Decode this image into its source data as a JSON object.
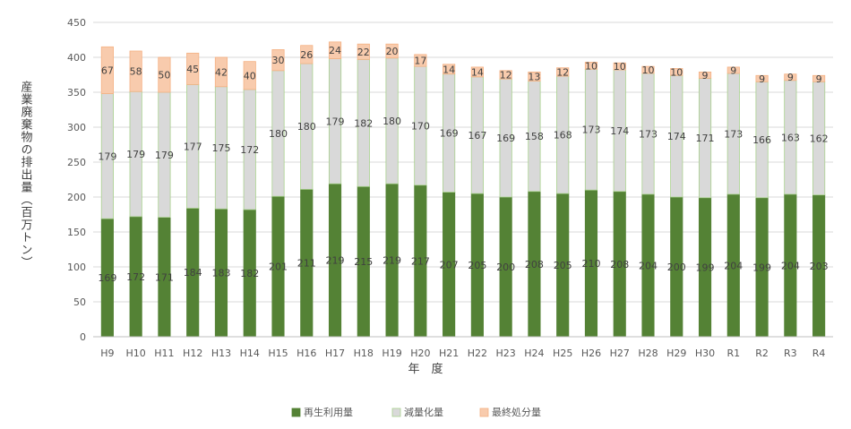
{
  "chart_data": {
    "type": "bar",
    "stacked": true,
    "title": "",
    "xlabel": "年　度",
    "ylabel": "産業廃棄物の排出量（百万トン）",
    "ylim": [
      0,
      450
    ],
    "yticks": [
      0,
      50,
      100,
      150,
      200,
      250,
      300,
      350,
      400,
      450
    ],
    "grid": true,
    "legend_position": "bottom",
    "categories": [
      "H9",
      "H10",
      "H11",
      "H12",
      "H13",
      "H14",
      "H15",
      "H16",
      "H17",
      "H18",
      "H19",
      "H20",
      "H21",
      "H22",
      "H23",
      "H24",
      "H25",
      "H26",
      "H27",
      "H28",
      "H29",
      "H30",
      "R1",
      "R2",
      "R3",
      "R4"
    ],
    "series": [
      {
        "name": "再生利用量",
        "color": "#548235",
        "values": [
          169,
          172,
          171,
          184,
          183,
          182,
          201,
          211,
          219,
          215,
          219,
          217,
          207,
          205,
          200,
          208,
          205,
          210,
          208,
          204,
          200,
          199,
          204,
          199,
          204,
          203
        ]
      },
      {
        "name": "減量化量",
        "color": "#d9d9d9",
        "values": [
          179,
          179,
          179,
          177,
          175,
          172,
          180,
          180,
          179,
          182,
          180,
          170,
          169,
          167,
          169,
          158,
          168,
          173,
          174,
          173,
          174,
          171,
          173,
          166,
          163,
          162
        ]
      },
      {
        "name": "最終処分量",
        "color": "#f8cbad",
        "values": [
          67,
          58,
          50,
          45,
          42,
          40,
          30,
          26,
          24,
          22,
          20,
          17,
          14,
          14,
          12,
          13,
          12,
          10,
          10,
          10,
          10,
          9,
          9,
          9,
          9,
          9
        ]
      }
    ]
  }
}
